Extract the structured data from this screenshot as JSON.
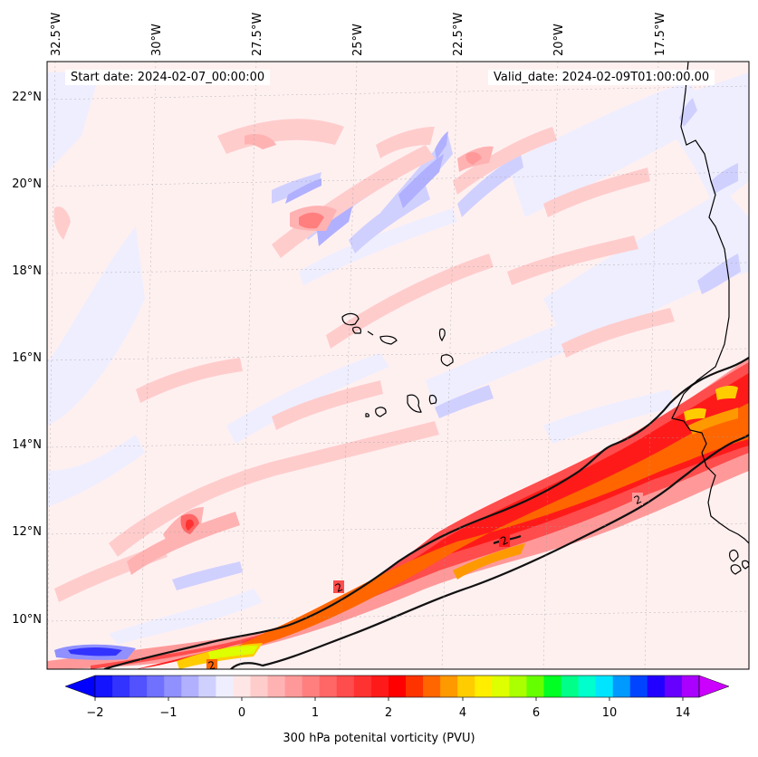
{
  "header": {
    "start_label": "Start date: 2024-02-07_00:00:00",
    "valid_label": "Valid_date: 2024-02-09T01:00:00.00"
  },
  "axes": {
    "lon_labels": [
      "32.5°W",
      "30°W",
      "27.5°W",
      "25°W",
      "22.5°W",
      "20°W",
      "17.5°W"
    ],
    "lat_labels": [
      "22°N",
      "20°N",
      "18°N",
      "16°N",
      "14°N",
      "12°N",
      "10°N"
    ]
  },
  "contour_labels": [
    "2",
    "2",
    "2",
    "2"
  ],
  "colorbar": {
    "title": "300 hPa potenital vorticity (PVU)",
    "tick_labels": [
      "−2",
      "−1",
      "0",
      "1",
      "2",
      "4",
      "6",
      "10",
      "14"
    ],
    "colors": [
      "#1414ff",
      "#3333ff",
      "#5252ff",
      "#7171ff",
      "#9090ff",
      "#b0b0ff",
      "#d0d0ff",
      "#eeeeff",
      "#ffe6e6",
      "#ffcccc",
      "#ffb2b2",
      "#ff9999",
      "#ff7f7f",
      "#ff6666",
      "#ff4c4c",
      "#ff3232",
      "#ff1a1a",
      "#ff0000",
      "#ff3300",
      "#ff6600",
      "#ff9900",
      "#ffcc00",
      "#ffee00",
      "#ddff00",
      "#aaff00",
      "#66ff00",
      "#00ff22",
      "#00ff88",
      "#00ffcc",
      "#00e5ff",
      "#0099ff",
      "#0044ff",
      "#2200ff",
      "#6600ff",
      "#aa00ff"
    ],
    "under_color": "#0000ff",
    "over_color": "#cc00ff"
  },
  "colors": {
    "contour": "#111111",
    "coast": "#000000"
  }
}
